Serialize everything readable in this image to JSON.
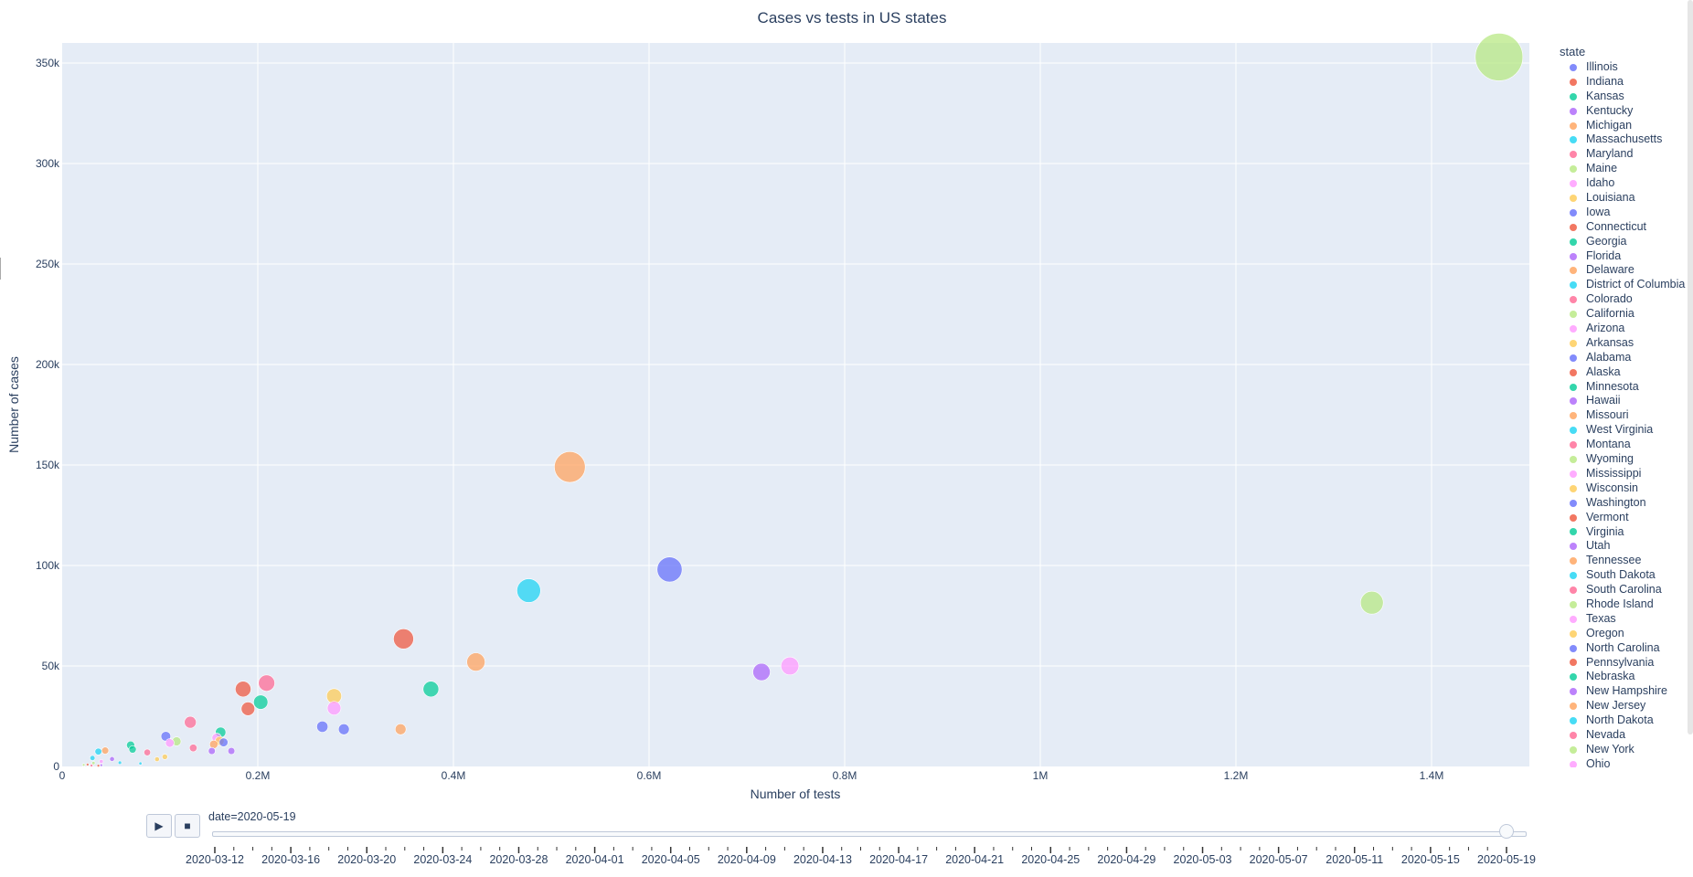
{
  "chart_data": {
    "type": "scatter",
    "title": "Cases vs tests in US states",
    "xlabel": "Number of tests",
    "ylabel": "Number of cases",
    "xlim": [
      0,
      1500000
    ],
    "ylim": [
      0,
      360000
    ],
    "x_ticks": [
      {
        "value": 0,
        "label": "0"
      },
      {
        "value": 200000,
        "label": "0.2M"
      },
      {
        "value": 400000,
        "label": "0.4M"
      },
      {
        "value": 600000,
        "label": "0.6M"
      },
      {
        "value": 800000,
        "label": "0.8M"
      },
      {
        "value": 1000000,
        "label": "1M"
      },
      {
        "value": 1200000,
        "label": "1.2M"
      },
      {
        "value": 1400000,
        "label": "1.4M"
      }
    ],
    "y_ticks": [
      {
        "value": 0,
        "label": "0"
      },
      {
        "value": 50000,
        "label": "50k"
      },
      {
        "value": 100000,
        "label": "100k"
      },
      {
        "value": 150000,
        "label": "150k"
      },
      {
        "value": 200000,
        "label": "200k"
      },
      {
        "value": 250000,
        "label": "250k"
      },
      {
        "value": 300000,
        "label": "300k"
      },
      {
        "value": 350000,
        "label": "350k"
      }
    ],
    "grid": true,
    "legend_title": "state",
    "legend_placement": "right",
    "series": [
      {
        "name": "Illinois",
        "color": "#636efa",
        "x": 621000,
        "y": 98000
      },
      {
        "name": "Indiana",
        "color": "#EF553B",
        "x": 190000,
        "y": 28700
      },
      {
        "name": "Kansas",
        "color": "#00cc96",
        "x": 72000,
        "y": 8500
      },
      {
        "name": "Kentucky",
        "color": "#ab63fa",
        "x": 173000,
        "y": 7700
      },
      {
        "name": "Michigan",
        "color": "#FFA15A",
        "x": 423000,
        "y": 52000
      },
      {
        "name": "Massachusetts",
        "color": "#19d3f3",
        "x": 477000,
        "y": 87500
      },
      {
        "name": "Maryland",
        "color": "#FF6692",
        "x": 209000,
        "y": 41500
      },
      {
        "name": "Maine",
        "color": "#B6E880",
        "x": 32000,
        "y": 1700
      },
      {
        "name": "Idaho",
        "color": "#FF97FF",
        "x": 40000,
        "y": 2500
      },
      {
        "name": "Louisiana",
        "color": "#FECB52",
        "x": 278000,
        "y": 35000
      },
      {
        "name": "Iowa",
        "color": "#636efa",
        "x": 106000,
        "y": 15000
      },
      {
        "name": "Connecticut",
        "color": "#EF553B",
        "x": 185000,
        "y": 38500
      },
      {
        "name": "Georgia",
        "color": "#00cc96",
        "x": 203000,
        "y": 32000
      },
      {
        "name": "Florida",
        "color": "#ab63fa",
        "x": 715000,
        "y": 47000
      },
      {
        "name": "Delaware",
        "color": "#FFA15A",
        "x": 44000,
        "y": 7900
      },
      {
        "name": "District of Columbia",
        "color": "#19d3f3",
        "x": 37000,
        "y": 7400
      },
      {
        "name": "Colorado",
        "color": "#FF6692",
        "x": 131000,
        "y": 22000
      },
      {
        "name": "California",
        "color": "#B6E880",
        "x": 1339000,
        "y": 81500
      },
      {
        "name": "Arizona",
        "color": "#FF97FF",
        "x": 158000,
        "y": 14200
      },
      {
        "name": "Arkansas",
        "color": "#FECB52",
        "x": 105000,
        "y": 4800
      },
      {
        "name": "Alabama",
        "color": "#636efa",
        "x": 165000,
        "y": 12000
      },
      {
        "name": "Alaska",
        "color": "#EF553B",
        "x": 37000,
        "y": 400
      },
      {
        "name": "Minnesota",
        "color": "#00cc96",
        "x": 162000,
        "y": 17000
      },
      {
        "name": "Hawaii",
        "color": "#ab63fa",
        "x": 40000,
        "y": 640
      },
      {
        "name": "Missouri",
        "color": "#FFA15A",
        "x": 155000,
        "y": 11000
      },
      {
        "name": "West Virginia",
        "color": "#19d3f3",
        "x": 80000,
        "y": 1500
      },
      {
        "name": "Montana",
        "color": "#FF6692",
        "x": 30000,
        "y": 470
      },
      {
        "name": "Wyoming",
        "color": "#B6E880",
        "x": 22000,
        "y": 770
      },
      {
        "name": "Mississippi",
        "color": "#FF97FF",
        "x": 110000,
        "y": 11700
      },
      {
        "name": "Wisconsin",
        "color": "#FECB52",
        "x": 161000,
        "y": 12700
      },
      {
        "name": "Washington",
        "color": "#636efa",
        "x": 288000,
        "y": 18500
      },
      {
        "name": "Vermont",
        "color": "#EF553B",
        "x": 26000,
        "y": 940
      },
      {
        "name": "Virginia",
        "color": "#00cc96",
        "x": 377000,
        "y": 38500
      },
      {
        "name": "Utah",
        "color": "#ab63fa",
        "x": 153000,
        "y": 7700
      },
      {
        "name": "Tennessee",
        "color": "#FFA15A",
        "x": 346000,
        "y": 18500
      },
      {
        "name": "South Dakota",
        "color": "#19d3f3",
        "x": 31000,
        "y": 4200
      },
      {
        "name": "South Carolina",
        "color": "#FF6692",
        "x": 134000,
        "y": 9200
      },
      {
        "name": "Rhode Island",
        "color": "#B6E880",
        "x": 117000,
        "y": 12500
      },
      {
        "name": "Texas",
        "color": "#FF97FF",
        "x": 744000,
        "y": 50000
      },
      {
        "name": "Oregon",
        "color": "#FECB52",
        "x": 97000,
        "y": 3600
      },
      {
        "name": "North Carolina",
        "color": "#636efa",
        "x": 266000,
        "y": 19800
      },
      {
        "name": "Pennsylvania",
        "color": "#EF553B",
        "x": 349000,
        "y": 63500
      },
      {
        "name": "Nebraska",
        "color": "#00cc96",
        "x": 70000,
        "y": 10600
      },
      {
        "name": "New Hampshire",
        "color": "#ab63fa",
        "x": 51000,
        "y": 3700
      },
      {
        "name": "New Jersey",
        "color": "#FFA15A",
        "x": 519000,
        "y": 149000
      },
      {
        "name": "North Dakota",
        "color": "#19d3f3",
        "x": 59000,
        "y": 1900
      },
      {
        "name": "Nevada",
        "color": "#FF6692",
        "x": 87000,
        "y": 7000
      },
      {
        "name": "New York",
        "color": "#B6E880",
        "x": 1469000,
        "y": 353000
      },
      {
        "name": "Ohio",
        "color": "#FF97FF",
        "x": 278000,
        "y": 29000
      }
    ]
  },
  "animation": {
    "current_label": "date=2020-05-19",
    "play_icon": "play-icon",
    "stop_icon": "stop-icon",
    "position_fraction": 1.0,
    "dates": [
      "2020-03-12",
      "2020-03-16",
      "2020-03-20",
      "2020-03-24",
      "2020-03-28",
      "2020-04-01",
      "2020-04-05",
      "2020-04-09",
      "2020-04-13",
      "2020-04-17",
      "2020-04-21",
      "2020-04-25",
      "2020-04-29",
      "2020-05-03",
      "2020-05-07",
      "2020-05-11",
      "2020-05-15",
      "2020-05-19"
    ]
  }
}
